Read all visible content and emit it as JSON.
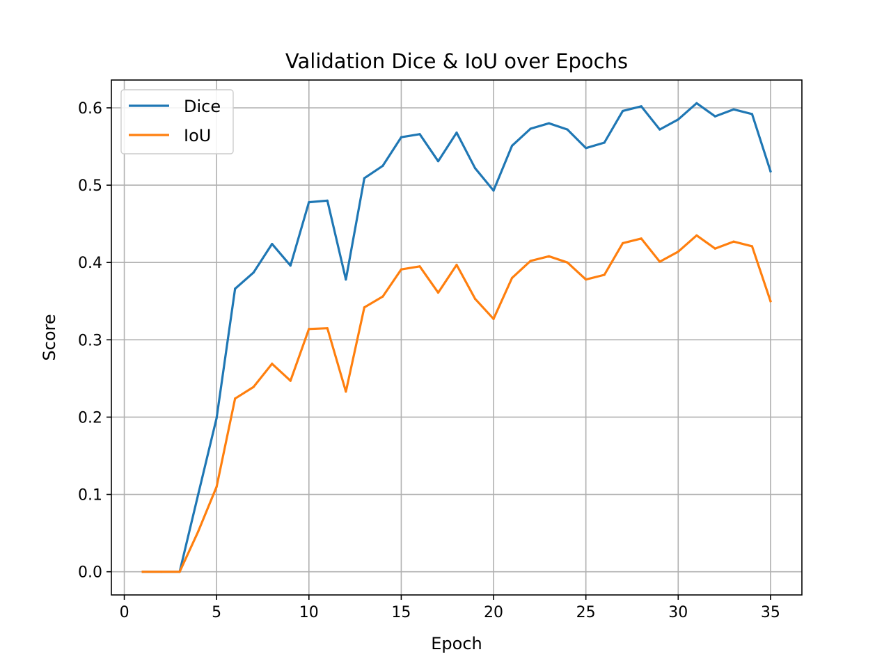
{
  "chart_data": {
    "type": "line",
    "title": "Validation Dice & IoU over Epochs",
    "xlabel": "Epoch",
    "ylabel": "Score",
    "xlim": [
      -0.7,
      36.7
    ],
    "ylim": [
      -0.03,
      0.636
    ],
    "xticks": [
      0,
      5,
      10,
      15,
      20,
      25,
      30,
      35
    ],
    "yticks": [
      0.0,
      0.1,
      0.2,
      0.3,
      0.4,
      0.5,
      0.6
    ],
    "xtick_labels": [
      "0",
      "5",
      "10",
      "15",
      "20",
      "25",
      "30",
      "35"
    ],
    "ytick_labels": [
      "0.0",
      "0.1",
      "0.2",
      "0.3",
      "0.4",
      "0.5",
      "0.6"
    ],
    "grid": true,
    "legend_position": "top-left",
    "x": [
      1,
      2,
      3,
      4,
      5,
      6,
      7,
      8,
      9,
      10,
      11,
      12,
      13,
      14,
      15,
      16,
      17,
      18,
      19,
      20,
      21,
      22,
      23,
      24,
      25,
      26,
      27,
      28,
      29,
      30,
      31,
      32,
      33,
      34,
      35
    ],
    "series": [
      {
        "name": "Dice",
        "color": "#1f77b4",
        "values": [
          0.0,
          0.0,
          0.0,
          0.1,
          0.199,
          0.366,
          0.387,
          0.424,
          0.396,
          0.478,
          0.48,
          0.378,
          0.509,
          0.525,
          0.562,
          0.566,
          0.531,
          0.568,
          0.522,
          0.493,
          0.551,
          0.573,
          0.58,
          0.572,
          0.548,
          0.555,
          0.596,
          0.602,
          0.572,
          0.585,
          0.606,
          0.589,
          0.598,
          0.592,
          0.518
        ]
      },
      {
        "name": "IoU",
        "color": "#ff7f0e",
        "values": [
          0.0,
          0.0,
          0.0,
          0.052,
          0.11,
          0.224,
          0.239,
          0.269,
          0.247,
          0.314,
          0.315,
          0.233,
          0.342,
          0.356,
          0.391,
          0.395,
          0.361,
          0.397,
          0.353,
          0.327,
          0.38,
          0.402,
          0.408,
          0.4,
          0.378,
          0.384,
          0.425,
          0.431,
          0.401,
          0.414,
          0.435,
          0.418,
          0.427,
          0.421,
          0.35
        ]
      }
    ]
  }
}
